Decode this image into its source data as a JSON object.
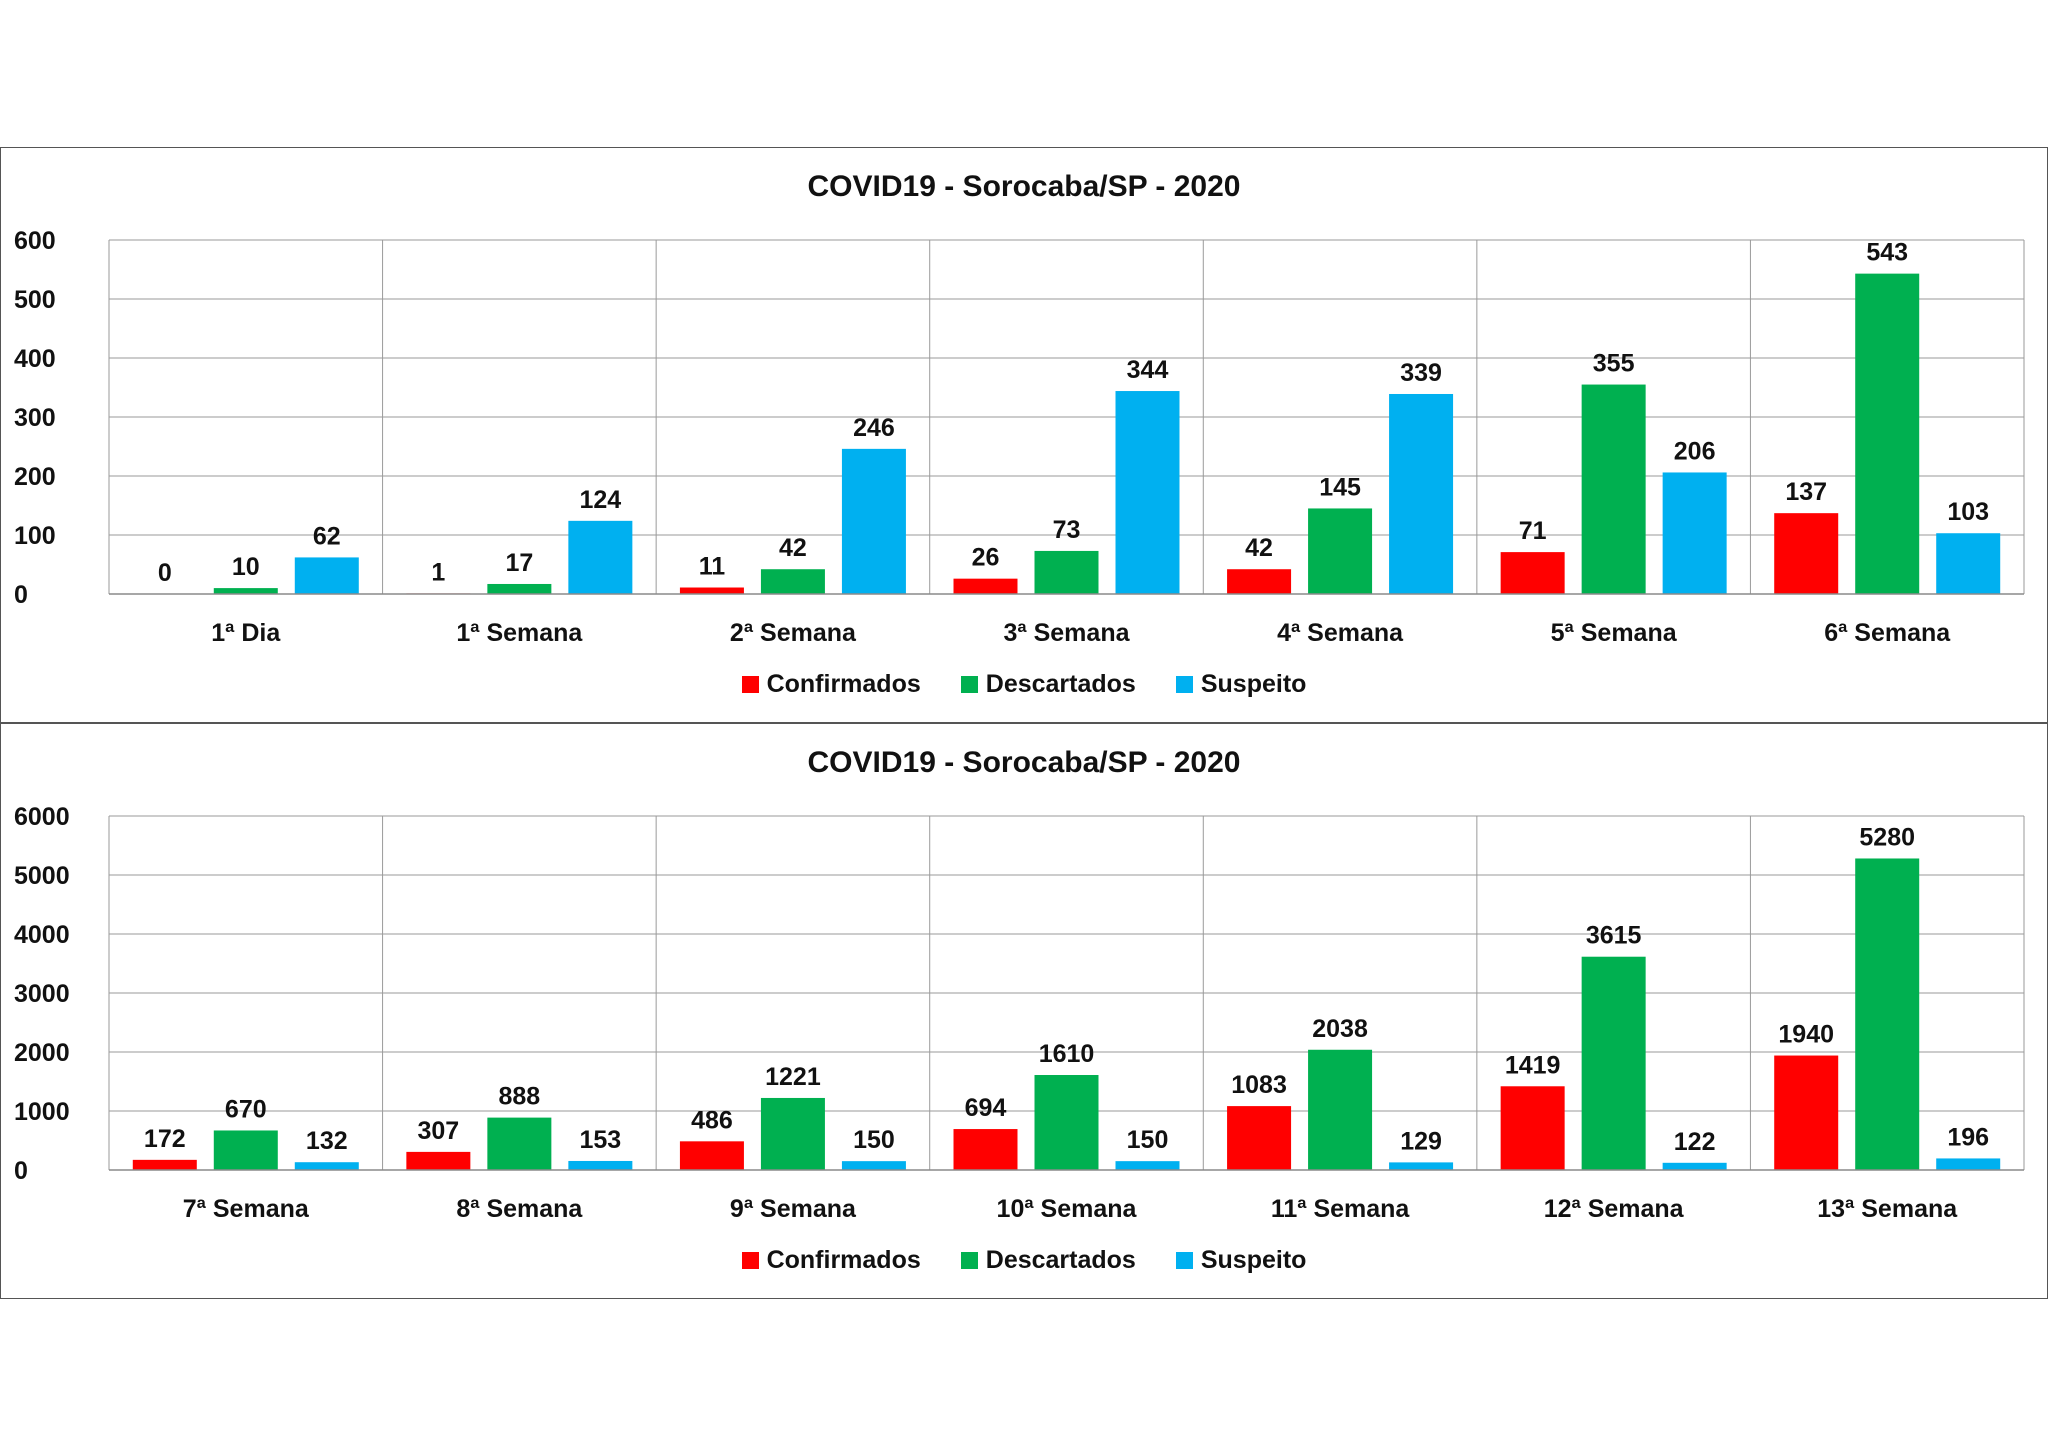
{
  "chart_data": [
    {
      "type": "bar",
      "title": "COVID19 - Sorocaba/SP - 2020",
      "categories": [
        "1ª Dia",
        "1ª Semana",
        "2ª Semana",
        "3ª Semana",
        "4ª Semana",
        "5ª Semana",
        "6ª Semana"
      ],
      "series": [
        {
          "name": "Confirmados",
          "color": "#ff0000",
          "values": [
            0,
            1,
            11,
            26,
            42,
            71,
            137
          ]
        },
        {
          "name": "Descartados",
          "color": "#00b050",
          "values": [
            10,
            17,
            42,
            73,
            145,
            355,
            543
          ]
        },
        {
          "name": "Suspeito",
          "color": "#00b0f0",
          "values": [
            62,
            124,
            246,
            344,
            339,
            206,
            103
          ]
        }
      ],
      "ylim": [
        0,
        600
      ],
      "yticks": [
        "0",
        "100",
        "200",
        "300",
        "400",
        "500",
        "600"
      ],
      "xlabel": "",
      "ylabel": "",
      "grid": true,
      "legend": "bottom"
    },
    {
      "type": "bar",
      "title": "COVID19 - Sorocaba/SP - 2020",
      "categories": [
        "7ª Semana",
        "8ª Semana",
        "9ª Semana",
        "10ª Semana",
        "11ª Semana",
        "12ª Semana",
        "13ª Semana"
      ],
      "series": [
        {
          "name": "Confirmados",
          "color": "#ff0000",
          "values": [
            172,
            307,
            486,
            694,
            1083,
            1419,
            1940
          ]
        },
        {
          "name": "Descartados",
          "color": "#00b050",
          "values": [
            670,
            888,
            1221,
            1610,
            2038,
            3615,
            5280
          ]
        },
        {
          "name": "Suspeito",
          "color": "#00b0f0",
          "values": [
            132,
            153,
            150,
            150,
            129,
            122,
            196
          ]
        }
      ],
      "ylim": [
        0,
        6000
      ],
      "yticks": [
        "0",
        "1000",
        "2000",
        "3000",
        "4000",
        "5000",
        "6000"
      ],
      "xlabel": "",
      "ylabel": "",
      "grid": true,
      "legend": "bottom"
    }
  ]
}
